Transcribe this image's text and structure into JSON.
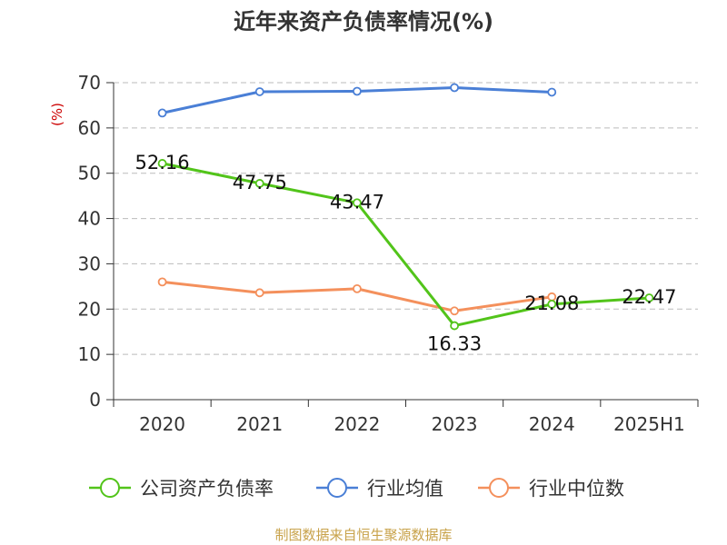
{
  "chart_data": {
    "type": "line",
    "title": "近年来资产负债率情况(%)",
    "ylabel": "(%)",
    "xlabel": "",
    "ylim": [
      0,
      70
    ],
    "yticks": [
      0,
      10,
      20,
      30,
      40,
      50,
      60,
      70
    ],
    "categories": [
      "2020",
      "2021",
      "2022",
      "2023",
      "2024",
      "2025H1"
    ],
    "grid": true,
    "legend_position": "bottom",
    "series": [
      {
        "name": "公司资产负债率",
        "color": "#52c41a",
        "values": [
          52.16,
          47.75,
          43.47,
          16.33,
          21.08,
          22.47
        ],
        "labels": [
          "52.16",
          "47.75",
          "43.47",
          "16.33",
          "21.08",
          "22.47"
        ]
      },
      {
        "name": "行业均值",
        "color": "#4a7fd6",
        "values": [
          63.3,
          68.0,
          68.1,
          68.9,
          67.9,
          null
        ]
      },
      {
        "name": "行业中位数",
        "color": "#f4905c",
        "values": [
          26.0,
          23.6,
          24.5,
          19.6,
          22.7,
          null
        ]
      }
    ]
  },
  "source_note": "制图数据来自恒生聚源数据库"
}
